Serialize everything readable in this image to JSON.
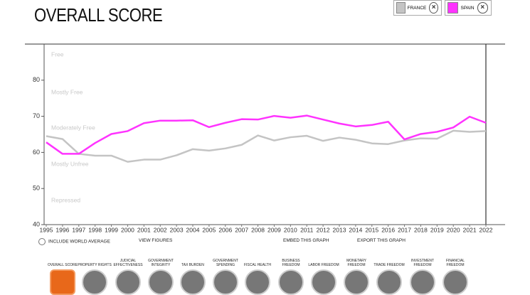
{
  "header": {
    "title": "OVERALL SCORE"
  },
  "chart_data": {
    "type": "line",
    "x": [
      1995,
      1996,
      1997,
      1998,
      1999,
      2000,
      2001,
      2002,
      2003,
      2004,
      2005,
      2006,
      2007,
      2008,
      2009,
      2010,
      2011,
      2012,
      2013,
      2014,
      2015,
      2016,
      2017,
      2018,
      2019,
      2020,
      2021,
      2022
    ],
    "xlim": [
      1995,
      2022
    ],
    "xticks": [
      1995,
      1996,
      1997,
      1998,
      1999,
      2000,
      2001,
      2002,
      2003,
      2004,
      2005,
      2006,
      2007,
      2008,
      2009,
      2010,
      2011,
      2012,
      2013,
      2014,
      2015,
      2016,
      2017,
      2018,
      2019,
      2020,
      2021,
      2022
    ],
    "ylim": [
      40,
      90
    ],
    "yticks": [
      40,
      50,
      60,
      70,
      80
    ],
    "band_labels": [
      "Free",
      "Mostly Free",
      "Moderately Free",
      "Mostly Unfree",
      "Repressed"
    ],
    "series": [
      {
        "name": "FRANCE",
        "color": "#c4c4c4",
        "values": [
          64.5,
          63.7,
          59.6,
          59.1,
          59.1,
          57.4,
          58.0,
          58.0,
          59.2,
          60.9,
          60.5,
          61.1,
          62.1,
          64.7,
          63.3,
          64.2,
          64.6,
          63.2,
          64.1,
          63.5,
          62.5,
          62.3,
          63.3,
          63.9,
          63.8,
          66.0,
          65.7,
          65.9
        ]
      },
      {
        "name": "SPAIN",
        "color": "#ff33ff",
        "values": [
          62.8,
          59.6,
          59.6,
          62.6,
          65.1,
          65.9,
          68.1,
          68.8,
          68.8,
          68.9,
          67.0,
          68.2,
          69.2,
          69.1,
          70.1,
          69.6,
          70.2,
          69.1,
          68.0,
          67.2,
          67.6,
          68.5,
          63.6,
          65.1,
          65.7,
          66.9,
          69.9,
          68.2
        ]
      }
    ]
  },
  "controls": {
    "world_average": "INCLUDE WORLD AVERAGE",
    "view": "VIEW FIGURES",
    "embed": "EMBED THIS GRAPH",
    "export": "EXPORT THIS GRAPH"
  },
  "indicators": [
    "OVERALL SCORE",
    "PROPERTY RIGHTS",
    "JUDICIAL EFFECTIVENESS",
    "GOVERNMENT INTEGRITY",
    "TAX BURDEN",
    "GOVERNMENT SPENDING",
    "FISCAL HEALTH",
    "BUSINESS FREEDOM",
    "LABOR FREEDOM",
    "MONETARY FREEDOM",
    "TRADE FREEDOM",
    "INVESTMENT FREEDOM",
    "FINANCIAL FREEDOM"
  ]
}
